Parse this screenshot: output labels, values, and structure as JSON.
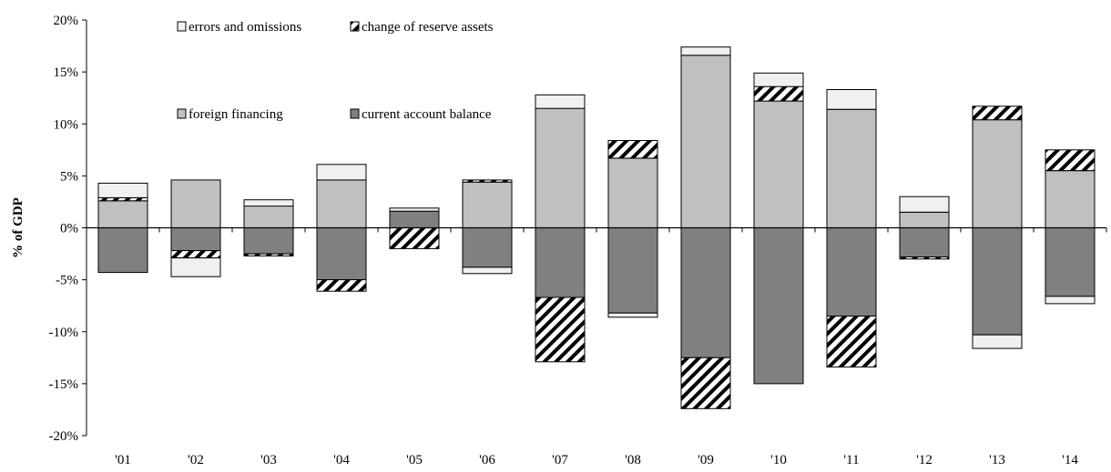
{
  "chart_data": {
    "type": "bar",
    "stacked": true,
    "categories": [
      "'01",
      "'02",
      "'03",
      "'04",
      "'05",
      "'06",
      "'07",
      "'08",
      "'09",
      "'10",
      "'11",
      "'12",
      "'13",
      "'14"
    ],
    "ylabel": "% of GDP",
    "ylim": [
      -20,
      20
    ],
    "yticks": [
      20,
      15,
      10,
      5,
      0,
      -5,
      -10,
      -15,
      -20
    ],
    "ytick_labels": [
      "20%",
      "15%",
      "10%",
      "5%",
      "0%",
      "-5%",
      "-10%",
      "-15%",
      "-20%"
    ],
    "legend_placement": "top-left",
    "series": [
      {
        "name": "current account balance",
        "key": "ca",
        "fill": "#808080",
        "pattern": "solid",
        "values": [
          -4.3,
          -2.2,
          -2.5,
          -5.0,
          1.6,
          -3.8,
          -6.7,
          -8.2,
          -12.5,
          -15.0,
          -8.5,
          -2.8,
          -10.3,
          -6.6
        ]
      },
      {
        "name": "foreign financing",
        "key": "ff",
        "fill": "#c0c0c0",
        "pattern": "solid",
        "values": [
          2.6,
          4.6,
          2.1,
          4.6,
          0.0,
          4.4,
          11.5,
          6.7,
          16.6,
          12.2,
          11.4,
          1.5,
          10.4,
          5.5
        ]
      },
      {
        "name": "change of reserve assets",
        "key": "ra",
        "fill": "#ffffff",
        "pattern": "hatch",
        "values": [
          0.3,
          -0.7,
          -0.2,
          -1.1,
          -2.0,
          0.2,
          -6.2,
          1.7,
          -4.9,
          1.4,
          -4.9,
          -0.2,
          1.3,
          2.0
        ]
      },
      {
        "name": "errors and omissions",
        "key": "eo",
        "fill": "#f0f0f0",
        "pattern": "solid",
        "values": [
          1.4,
          -1.8,
          0.6,
          1.5,
          0.3,
          -0.6,
          1.3,
          -0.4,
          0.8,
          1.3,
          1.9,
          1.5,
          -1.3,
          -0.7
        ]
      }
    ],
    "legend": [
      {
        "label": "errors and omissions",
        "key": "eo"
      },
      {
        "label": "change of reserve assets",
        "key": "ra"
      },
      {
        "label": "foreign financing",
        "key": "ff"
      },
      {
        "label": "current account balance",
        "key": "ca"
      }
    ]
  }
}
